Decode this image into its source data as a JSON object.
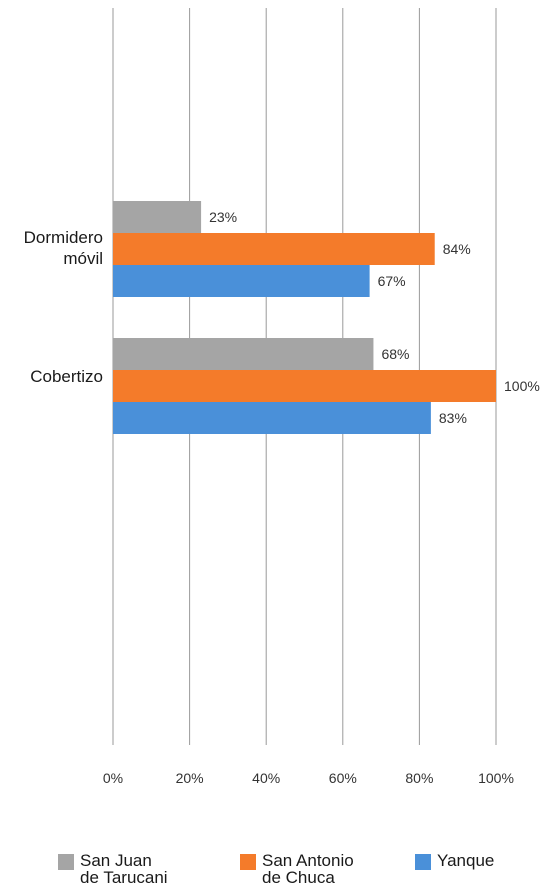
{
  "chart_data": {
    "type": "bar",
    "orientation": "horizontal",
    "categories": [
      "Dormidero\nmóvil",
      "Cobertizo"
    ],
    "series": [
      {
        "name": "San Juan de Tarucani",
        "color": "#A5A5A5",
        "values": [
          23,
          68
        ],
        "labels": [
          "23%",
          "68%"
        ]
      },
      {
        "name": "San Antonio de Chuca",
        "color": "#F47B2A",
        "values": [
          84,
          100
        ],
        "labels": [
          "84%",
          "100%"
        ]
      },
      {
        "name": "Yanque",
        "color": "#4A90D9",
        "values": [
          67,
          83
        ],
        "labels": [
          "67%",
          "83%"
        ]
      }
    ],
    "xlim": [
      0,
      100
    ],
    "x_ticks": [
      "0%",
      "20%",
      "40%",
      "60%",
      "80%",
      "100%"
    ],
    "grid": true,
    "legend_position": "bottom",
    "title": "",
    "xlabel": "",
    "ylabel": ""
  },
  "legend": {
    "items": [
      {
        "label": "San Juan\nde Tarucani",
        "color": "#A5A5A5"
      },
      {
        "label": "San Antonio\nde Chuca",
        "color": "#F47B2A"
      },
      {
        "label": "Yanque",
        "color": "#4A90D9"
      }
    ]
  }
}
